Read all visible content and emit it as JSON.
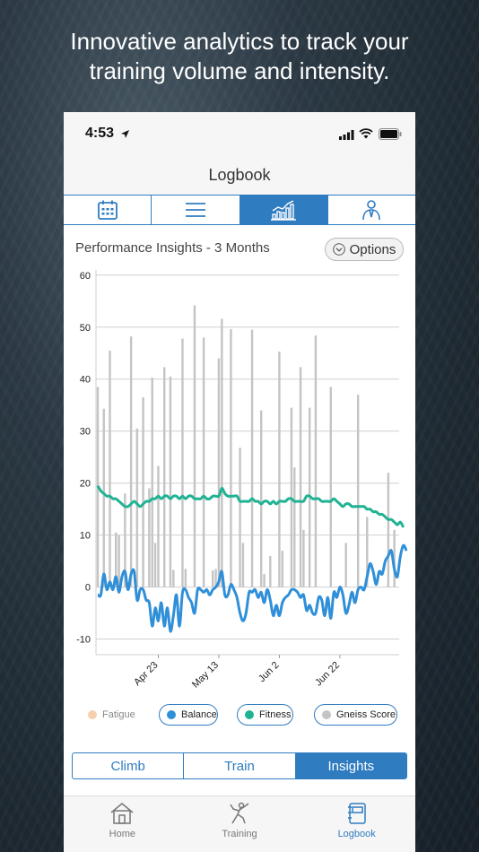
{
  "headline": {
    "line1": "Innovative analytics to track your",
    "line2": "training volume and intensity."
  },
  "status_bar": {
    "time": "4:53",
    "icons": [
      "location-arrow-icon",
      "signal-icon",
      "wifi-icon",
      "battery-icon"
    ]
  },
  "nav": {
    "title": "Logbook"
  },
  "top_tabs": [
    {
      "icon": "calendar-icon",
      "active": false
    },
    {
      "icon": "list-icon",
      "active": false
    },
    {
      "icon": "chart-icon",
      "active": true
    },
    {
      "icon": "coach-icon",
      "active": false
    }
  ],
  "insights": {
    "title": "Performance Insights - 3 Months",
    "options_label": "Options"
  },
  "colors": {
    "accent": "#2f7cc0",
    "balance": "#2f8fd8",
    "fitness": "#1fb394",
    "gneiss": "#c4c4c4",
    "fatigue": "#f5cfae"
  },
  "chart_data": {
    "type": "bar+line",
    "ylim": [
      -13,
      61
    ],
    "yticks": [
      60,
      50,
      40,
      30,
      20,
      10,
      0,
      -10
    ],
    "xticks": [
      "Apr 23",
      "May 13",
      "Jun 2",
      "Jun 22"
    ],
    "series": [
      {
        "name": "Gneiss Score",
        "type": "bar",
        "values": [
          38.5,
          0,
          34.3,
          0,
          45.5,
          0,
          10.5,
          10,
          0,
          18,
          0,
          48.2,
          0,
          30.5,
          0,
          36.5,
          0,
          19,
          40.3,
          8.5,
          23.3,
          0,
          42.3,
          0,
          40.5,
          3.3,
          0,
          0,
          47.8,
          3.5,
          0,
          0,
          54.2,
          0,
          0,
          48,
          0,
          0,
          3.2,
          3.5,
          44,
          51.6,
          0,
          0,
          49.6,
          0,
          0,
          26.8,
          8.5,
          0,
          0,
          49.5,
          0,
          0,
          34,
          2.5,
          0,
          6,
          0,
          0,
          45.3,
          7,
          0,
          0,
          34.5,
          23,
          0,
          42.3,
          11,
          0,
          34.5,
          0,
          48.4,
          0,
          0,
          0,
          0,
          38.5,
          0,
          0,
          0,
          0,
          8.5,
          0,
          0,
          0,
          37,
          0,
          0,
          13.5,
          0,
          0,
          0,
          0,
          0,
          0,
          22,
          0,
          11,
          0
        ]
      },
      {
        "name": "Fitness",
        "type": "line",
        "values": [
          19.5,
          18.5,
          18,
          17.5,
          17.5,
          17,
          17,
          16.5,
          16,
          15.5,
          15.5,
          16,
          16.5,
          16,
          15.5,
          16,
          16.5,
          16.5,
          17,
          17,
          17.5,
          17,
          17.5,
          17.5,
          17,
          17.5,
          17.5,
          17,
          17.5,
          17,
          17.5,
          17.5,
          17,
          17,
          17,
          17.5,
          17,
          17,
          17.5,
          17.5,
          17.5,
          19,
          18,
          17.5,
          17.5,
          17.5,
          17.5,
          16.5,
          16.5,
          16.5,
          16.5,
          17,
          16.5,
          16.5,
          16,
          16.5,
          16.5,
          16,
          16.5,
          16,
          16.5,
          16.5,
          16.5,
          17,
          17,
          16.5,
          16.5,
          16.5,
          16.5,
          17.5,
          17.5,
          17,
          17,
          17,
          16.5,
          16.5,
          16.5,
          16.5,
          17,
          16.5,
          16,
          15.5,
          16,
          16,
          15.5,
          15.5,
          15.5,
          15.5,
          15.5,
          15,
          15,
          14.5,
          14.5,
          14,
          14,
          13.5,
          13,
          13,
          12.5,
          12,
          12.5,
          11.5
        ]
      },
      {
        "name": "Balance",
        "type": "line",
        "values": [
          -1.5,
          -1.5,
          2.5,
          -0.5,
          1,
          -0.5,
          2,
          -1,
          2,
          3,
          -0.5,
          2.5,
          3,
          -2.5,
          -0.5,
          -0.5,
          -2.5,
          -3,
          -7.5,
          -4,
          -6.5,
          -3,
          -7.5,
          -4,
          -8.5,
          -5.5,
          -1.5,
          -7.5,
          -1,
          -0.5,
          -2,
          -3,
          -5,
          -0.5,
          -0.5,
          -1,
          -0.5,
          -1.5,
          -0.5,
          0,
          1,
          3,
          -1.5,
          -1.5,
          0.5,
          -0.5,
          -2,
          -5,
          -6.5,
          -5,
          -1,
          -1,
          -0.5,
          -2,
          -1,
          -3,
          -0.5,
          -2.5,
          -5.5,
          -3.5,
          -5.5,
          -3,
          -2,
          -1.5,
          -0.5,
          -0.5,
          -1,
          -2,
          -1.5,
          -4.5,
          -3.5,
          -5,
          -5,
          -2,
          -2.5,
          -5.5,
          -2,
          -6,
          -1,
          -2,
          0,
          -1.5,
          -5,
          -3.5,
          -1,
          -3,
          -0.5,
          0,
          -0.5,
          2,
          4.5,
          3,
          0.5,
          3,
          2.5,
          5,
          6,
          7,
          3.5,
          2,
          6,
          8,
          7
        ]
      },
      {
        "name": "Fatigue",
        "type": "line",
        "hidden": true,
        "values": []
      }
    ],
    "legend": [
      {
        "label": "Fatigue",
        "active": false
      },
      {
        "label": "Balance",
        "active": true
      },
      {
        "label": "Fitness",
        "active": true
      },
      {
        "label": "Gneiss Score",
        "active": true
      }
    ],
    "grid": true
  },
  "segment": {
    "items": [
      "Climb",
      "Train",
      "Insights"
    ],
    "active": 2
  },
  "tabbar": {
    "items": [
      {
        "label": "Home",
        "icon": "home-icon",
        "active": false
      },
      {
        "label": "Training",
        "icon": "climber-icon",
        "active": false
      },
      {
        "label": "Logbook",
        "icon": "logbook-icon",
        "active": true
      }
    ]
  }
}
